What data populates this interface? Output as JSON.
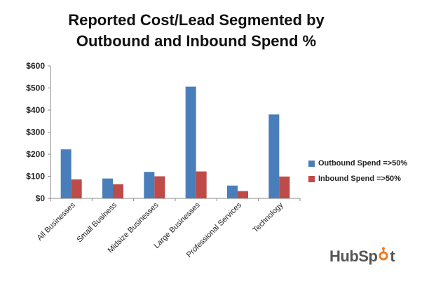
{
  "chart_data": {
    "type": "bar",
    "title_lines": [
      "Reported Cost/Lead Segmented by",
      "Outbound and Inbound Spend %"
    ],
    "categories": [
      "All Businesses",
      "Small Business",
      "Midsize Businesses",
      "Large Businesses",
      "Professional Services",
      "Technology"
    ],
    "series": [
      {
        "name": "Outbound Spend =>50%",
        "color": "#4a7ebb",
        "values": [
          222,
          90,
          120,
          506,
          58,
          380
        ]
      },
      {
        "name": "Inbound Spend =>50%",
        "color": "#be4b48",
        "values": [
          86,
          64,
          100,
          122,
          33,
          99
        ]
      }
    ],
    "ylim": [
      0,
      600
    ],
    "yticks": [
      0,
      100,
      200,
      300,
      400,
      500,
      600
    ],
    "ytick_labels": [
      "$0",
      "$100",
      "$200",
      "$300",
      "$400",
      "$500",
      "$600"
    ],
    "xlabel": "",
    "ylabel": "",
    "legend_position": "right",
    "grid": false
  },
  "logo": {
    "text_before": "HubSp",
    "text_after": "t",
    "accent_color": "#f07a22"
  }
}
